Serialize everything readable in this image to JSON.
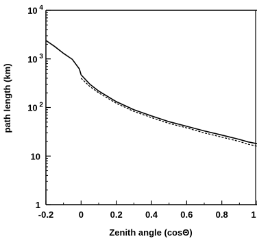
{
  "chart_data": {
    "type": "line",
    "title": "",
    "xlabel": "Zenith angle (cosΘ)",
    "ylabel": "path length (km)",
    "xlim": [
      -0.2,
      1.0
    ],
    "ylim": [
      1,
      10000
    ],
    "yscale": "log",
    "grid": false,
    "x_tick_labels": [
      "-0.2",
      "0",
      "0.2",
      "0.4",
      "0.6",
      "0.8",
      "1"
    ],
    "y_tick_labels": [
      {
        "value": 1,
        "label": "1",
        "exponent": ""
      },
      {
        "value": 10,
        "label": "10",
        "exponent": ""
      },
      {
        "value": 100,
        "label": "10",
        "exponent": "2"
      },
      {
        "value": 1000,
        "label": "10",
        "exponent": "3"
      },
      {
        "value": 10000,
        "label": "10",
        "exponent": "4"
      }
    ],
    "series": [
      {
        "style": "solid",
        "color": "#000000",
        "x": [
          -0.2,
          -0.15,
          -0.1,
          -0.05,
          -0.01,
          0.0,
          0.05,
          0.1,
          0.2,
          0.3,
          0.4,
          0.5,
          0.6,
          0.7,
          0.8,
          0.9,
          0.95,
          1.0
        ],
        "y": [
          2400,
          1800,
          1300,
          980,
          620,
          470,
          300,
          218,
          132,
          90,
          67,
          51,
          41,
          33,
          27,
          22,
          19.5,
          18
        ]
      },
      {
        "style": "dashed",
        "color": "#000000",
        "x": [
          0.0,
          0.05,
          0.1,
          0.2,
          0.3,
          0.4,
          0.5,
          0.6,
          0.7,
          0.8,
          0.9,
          0.95,
          1.0
        ],
        "y": [
          400,
          270,
          200,
          122,
          83,
          62,
          47,
          38,
          30,
          24.5,
          20,
          17.5,
          16
        ]
      }
    ]
  }
}
